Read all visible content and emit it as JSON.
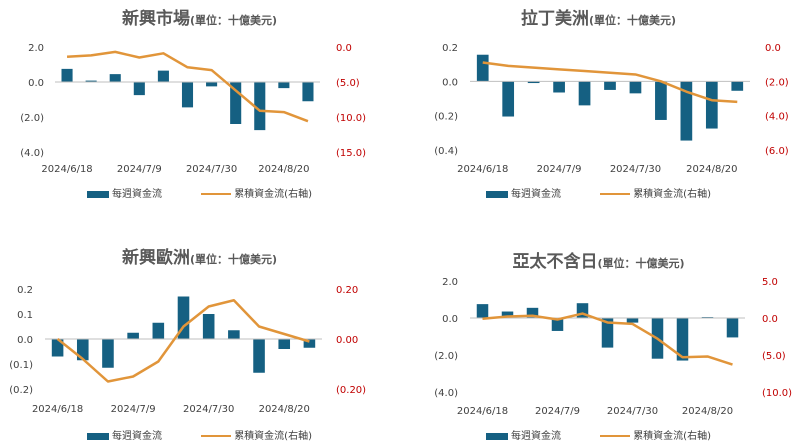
{
  "colors": {
    "bar": "#156082",
    "line": "#E1953A",
    "left_tick": "#404040",
    "right_tick": "#C00000"
  },
  "legend": {
    "bar_label": "每週資金流",
    "line_label": "累積資金流(右軸)"
  },
  "chart_data": [
    {
      "type": "bar+line",
      "title": "新興市場",
      "subtitle": "(單位：十億美元)",
      "x": [
        "2024/6/18",
        "2024/6/25",
        "2024/7/2",
        "2024/7/9",
        "2024/7/16",
        "2024/7/23",
        "2024/7/30",
        "2024/8/6",
        "2024/8/13",
        "2024/8/20",
        "2024/8/27"
      ],
      "xticks": [
        "2024/6/18",
        "2024/7/9",
        "2024/7/30",
        "2024/8/20"
      ],
      "bar_values": [
        0.75,
        0.08,
        0.45,
        -0.75,
        0.65,
        -1.45,
        -0.25,
        -2.4,
        -2.75,
        -0.35,
        -1.1
      ],
      "line_values": [
        -1.4,
        -1.2,
        -0.7,
        -1.5,
        -0.9,
        -2.9,
        -3.3,
        -6.2,
        -9.1,
        -9.3,
        -10.6
      ],
      "ylim": [
        -4,
        2
      ],
      "yticks": [
        2,
        0,
        -2,
        -4
      ],
      "yticklabels": [
        "2.0",
        "0.0",
        "(2.0)",
        "(4.0)"
      ],
      "y2lim": [
        -15,
        0
      ],
      "y2ticks": [
        0,
        -5,
        -10,
        -15
      ],
      "y2ticklabels": [
        "0.0",
        "(5.0)",
        "(10.0)",
        "(15.0)"
      ]
    },
    {
      "type": "bar+line",
      "title": "拉丁美洲",
      "subtitle": "(單位：十億美元)",
      "x": [
        "2024/6/18",
        "2024/6/25",
        "2024/7/2",
        "2024/7/9",
        "2024/7/16",
        "2024/7/23",
        "2024/7/30",
        "2024/8/6",
        "2024/8/13",
        "2024/8/20",
        "2024/8/27"
      ],
      "xticks": [
        "2024/6/18",
        "2024/7/9",
        "2024/7/30",
        "2024/8/20"
      ],
      "bar_values": [
        0.155,
        -0.205,
        -0.01,
        -0.065,
        -0.14,
        -0.05,
        -0.07,
        -0.225,
        -0.345,
        -0.275,
        -0.055
      ],
      "line_values": [
        -0.9,
        -1.1,
        -1.2,
        -1.3,
        -1.4,
        -1.5,
        -1.6,
        -2.0,
        -2.6,
        -3.1,
        -3.2
      ],
      "ylim": [
        -0.4,
        0.2
      ],
      "yticks": [
        0.2,
        0,
        -0.2,
        -0.4
      ],
      "yticklabels": [
        "0.2",
        "0.0",
        "(0.2)",
        "(0.4)"
      ],
      "y2lim": [
        -6,
        0
      ],
      "y2ticks": [
        0,
        -2,
        -4,
        -6
      ],
      "y2ticklabels": [
        "0.0",
        "(2.0)",
        "(4.0)",
        "(6.0)"
      ]
    },
    {
      "type": "bar+line",
      "title": "新興歐洲",
      "subtitle": "(單位：十億美元)",
      "x": [
        "2024/6/18",
        "2024/6/25",
        "2024/7/2",
        "2024/7/9",
        "2024/7/16",
        "2024/7/23",
        "2024/7/30",
        "2024/8/6",
        "2024/8/13",
        "2024/8/20",
        "2024/8/27"
      ],
      "xticks": [
        "2024/6/18",
        "2024/7/9",
        "2024/7/30",
        "2024/8/20"
      ],
      "bar_values": [
        -0.07,
        -0.085,
        -0.115,
        0.025,
        0.065,
        0.17,
        0.1,
        0.035,
        -0.135,
        -0.04,
        -0.035
      ],
      "line_values": [
        0.0,
        -0.08,
        -0.17,
        -0.15,
        -0.09,
        0.05,
        0.13,
        0.155,
        0.05,
        0.02,
        -0.01
      ],
      "ylim": [
        -0.2,
        0.2
      ],
      "yticks": [
        0.2,
        0.1,
        0,
        -0.1,
        -0.2
      ],
      "yticklabels": [
        "0.2",
        "0.1",
        "0.0",
        "(0.1)",
        "(0.2)"
      ],
      "y2lim": [
        -0.2,
        0.2
      ],
      "y2ticks": [
        0.2,
        0,
        -0.2
      ],
      "y2ticklabels": [
        "0.20",
        "0.00",
        "(0.20)"
      ]
    },
    {
      "type": "bar+line",
      "title": "亞太不含日",
      "subtitle": "(單位：十億美元)",
      "x": [
        "2024/6/18",
        "2024/6/25",
        "2024/7/2",
        "2024/7/9",
        "2024/7/16",
        "2024/7/23",
        "2024/7/30",
        "2024/8/6",
        "2024/8/13",
        "2024/8/20",
        "2024/8/27"
      ],
      "xticks": [
        "2024/6/18",
        "2024/7/9",
        "2024/7/30",
        "2024/8/20"
      ],
      "bar_values": [
        0.75,
        0.35,
        0.55,
        -0.7,
        0.8,
        -1.6,
        -0.25,
        -2.2,
        -2.3,
        0.05,
        -1.05
      ],
      "line_values": [
        -0.1,
        0.2,
        0.3,
        -0.2,
        0.6,
        -0.6,
        -0.8,
        -2.8,
        -5.3,
        -5.2,
        -6.3
      ],
      "ylim": [
        -4,
        2
      ],
      "yticks": [
        2,
        0,
        -2,
        -4
      ],
      "yticklabels": [
        "2.0",
        "0.0",
        "(2.0)",
        "(4.0)"
      ],
      "y2lim": [
        -10,
        5
      ],
      "y2ticks": [
        5,
        0,
        -5,
        -10
      ],
      "y2ticklabels": [
        "5.0",
        "0.0",
        "(5.0)",
        "(10.0)"
      ]
    }
  ]
}
